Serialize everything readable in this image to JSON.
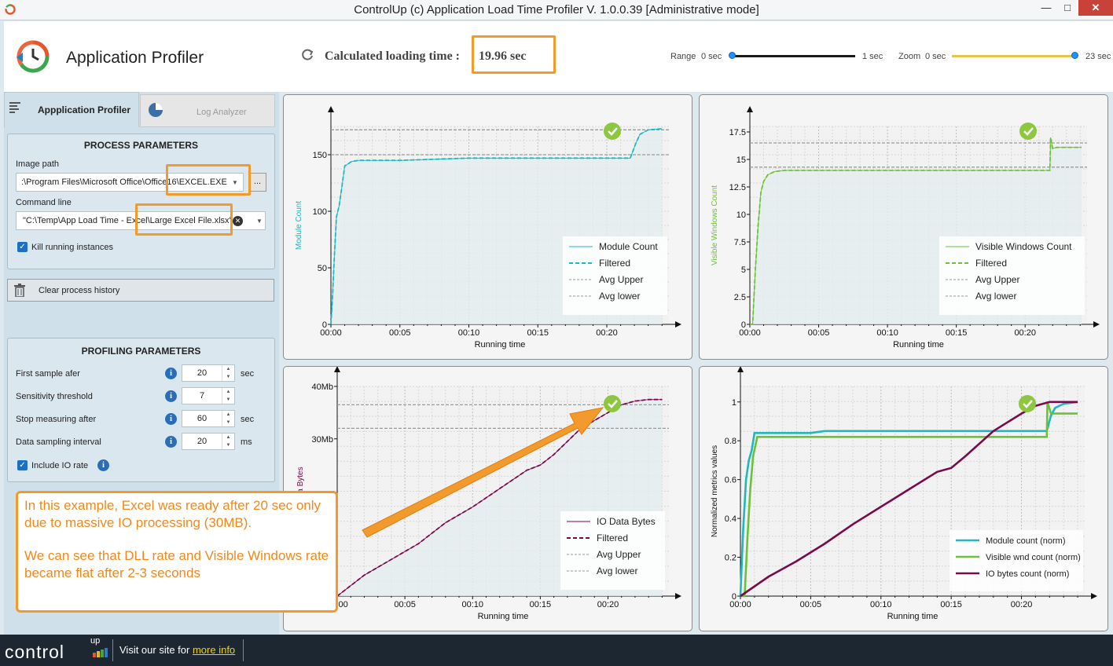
{
  "window": {
    "title": "ControlUp (c) Application Load Time Profiler  V. 1.0.0.39 [Administrative mode]",
    "min": "—",
    "max": "□",
    "close": "✕"
  },
  "header": {
    "app_title": "Application Profiler",
    "calc_label": "Calculated loading time :",
    "calc_value": "19.96 sec",
    "range": {
      "label": "Range",
      "min": "0 sec",
      "max": "1 sec",
      "value": 0
    },
    "zoom": {
      "label": "Zoom",
      "min": "0 sec",
      "max": "23 sec",
      "value": 1
    }
  },
  "tabs": [
    {
      "label": "Appplication Profiler",
      "icon": "list-icon"
    },
    {
      "label": "Log Analyzer",
      "icon": "pie-chart-icon"
    }
  ],
  "process": {
    "title": "PROCESS PARAMETERS",
    "image_path_label": "Image path",
    "image_path": "\\Program Files\\Microsoft Office\\Office16\\EXCEL.EXE",
    "image_path_shown": ":\\Program Files\\Microsoft Office\\Office16\\EXCEL.EXE",
    "browse": "...",
    "cmdline_label": "Command line",
    "cmdline": "\"C:\\Temp\\App Load Time - Excel\\Large Excel File.xlsx\"",
    "kill_label": "Kill running instances",
    "clear_label": "Clear process history"
  },
  "profiling": {
    "title": "PROFILING PARAMETERS",
    "rows": [
      {
        "label": "First sample afer",
        "value": "20",
        "unit": "sec"
      },
      {
        "label": "Sensitivity threshold",
        "value": "7",
        "unit": ""
      },
      {
        "label": "Stop measuring after",
        "value": "60",
        "unit": "sec"
      },
      {
        "label": "Data sampling interval",
        "value": "20",
        "unit": "ms"
      }
    ],
    "include_io": "Include IO rate"
  },
  "callout": {
    "p1": "In this example, Excel was ready after 20 sec only due to massive IO processing (30MB).",
    "p2": "We can see that DLL rate and Visible Windows rate became flat after 2-3 seconds"
  },
  "footer": {
    "brand": "control",
    "brand_up": "up",
    "visit": "Visit our site for ",
    "link": "more info"
  },
  "colors": {
    "teal": "#20b7c0",
    "green": "#6cc13b",
    "maroon": "#7a0a4c",
    "orange": "#f39a2c",
    "check": "#8dc63f"
  },
  "chart_data": [
    {
      "type": "line",
      "xlabel": "Running time",
      "ylabel": "Module Count",
      "xticks": [
        "00:00",
        "00:05",
        "00:10",
        "00:15",
        "00:20"
      ],
      "x_max_sec": 24.5,
      "ylim": [
        0,
        175
      ],
      "yticks": [
        0,
        50,
        100,
        150
      ],
      "avg_upper": 172,
      "avg_lower": 150,
      "series": [
        {
          "name": "Module Count",
          "color": "#20b7c0",
          "style": "solid",
          "x": [
            0,
            0.1,
            0.25,
            0.4,
            0.6,
            0.8,
            1.0,
            1.5,
            2,
            5,
            10,
            15,
            20,
            21.7,
            22.1,
            22.4,
            23,
            24
          ],
          "y": [
            0,
            20,
            60,
            95,
            105,
            122,
            140,
            144,
            145,
            145,
            147,
            147,
            147,
            147,
            160,
            168,
            172,
            173
          ]
        },
        {
          "name": "Filtered",
          "color": "#20b7c0",
          "style": "dashed",
          "x": [
            0,
            0.1,
            0.25,
            0.4,
            0.6,
            0.8,
            1.0,
            1.5,
            2,
            5,
            10,
            15,
            20,
            21.7,
            22.1,
            22.4,
            23,
            24
          ],
          "y": [
            0,
            20,
            60,
            95,
            105,
            122,
            140,
            144,
            145,
            145,
            147,
            147,
            147,
            147,
            160,
            168,
            172,
            173
          ]
        },
        {
          "name": "Avg Upper",
          "color": "#999999",
          "style": "dotted"
        },
        {
          "name": "Avg lower",
          "color": "#999999",
          "style": "dotted"
        }
      ]
    },
    {
      "type": "line",
      "xlabel": "Running time",
      "ylabel": "Visible Windows Count",
      "xticks": [
        "00:00",
        "00:05",
        "00:10",
        "00:15",
        "00:20"
      ],
      "x_max_sec": 24.5,
      "ylim": [
        0,
        18
      ],
      "yticks": [
        0,
        2.5,
        5,
        7.5,
        10,
        12.5,
        15,
        17.5
      ],
      "avg_upper": 16.5,
      "avg_lower": 14.3,
      "series": [
        {
          "name": "Visible Windows Count",
          "color": "#6cc13b",
          "style": "solid",
          "x": [
            0,
            0.2,
            0.4,
            0.6,
            0.8,
            1.0,
            1.3,
            1.8,
            2.5,
            5,
            10,
            15,
            20,
            21.8,
            21.85,
            22.0,
            22.3,
            24.1
          ],
          "y": [
            0,
            0,
            5,
            9,
            12,
            13,
            13.6,
            13.9,
            14,
            14,
            14,
            14,
            14,
            14,
            17,
            16,
            16.1,
            16.1
          ]
        },
        {
          "name": "Filtered",
          "color": "#6cc13b",
          "style": "dashed",
          "x": [
            0,
            0.2,
            0.4,
            0.6,
            0.8,
            1.0,
            1.3,
            1.8,
            2.5,
            5,
            10,
            15,
            20,
            21.8,
            21.85,
            22.0,
            22.3,
            24.1
          ],
          "y": [
            0,
            0,
            5,
            9,
            12,
            13,
            13.6,
            13.9,
            14,
            14,
            14,
            14,
            14,
            14,
            17,
            16,
            16.1,
            16.1
          ]
        },
        {
          "name": "Avg Upper",
          "color": "#999999",
          "style": "dotted"
        },
        {
          "name": "Avg lower",
          "color": "#999999",
          "style": "dotted"
        }
      ]
    },
    {
      "type": "line",
      "xlabel": "Running time",
      "ylabel": "IO Data Bytes",
      "xticks": [
        "00:00",
        "00:05",
        "00:10",
        "00:15",
        "00:20"
      ],
      "x_max_sec": 24.5,
      "ylim": [
        0,
        40
      ],
      "yticks": [
        30,
        40
      ],
      "ytick_labels": [
        "30Mb",
        "40Mb"
      ],
      "avg_upper": 36.5,
      "avg_lower": 32,
      "series": [
        {
          "name": "IO Data Bytes",
          "color": "#7a0a4c",
          "style": "solid",
          "x": [
            0,
            2,
            4,
            6,
            8,
            10,
            12,
            14,
            15,
            16,
            18,
            20,
            21,
            22,
            23,
            24
          ],
          "y": [
            0,
            4,
            7,
            10,
            14,
            17,
            20.5,
            24,
            25,
            27,
            32,
            35,
            36.5,
            37.2,
            37.5,
            37.5
          ]
        },
        {
          "name": "Filtered",
          "color": "#7a0a4c",
          "style": "dashed",
          "x": [
            0,
            2,
            4,
            6,
            8,
            10,
            12,
            14,
            15,
            16,
            18,
            20,
            21,
            22,
            23,
            24
          ],
          "y": [
            0,
            4,
            7,
            10,
            14,
            17,
            20.5,
            24,
            25,
            27,
            32,
            35,
            36.5,
            37.2,
            37.5,
            37.5
          ]
        },
        {
          "name": "Avg Upper",
          "color": "#999999",
          "style": "dotted"
        },
        {
          "name": "Avg lower",
          "color": "#999999",
          "style": "dotted"
        }
      ]
    },
    {
      "type": "line",
      "xlabel": "Running time",
      "ylabel": "Normalized metrics values",
      "xticks": [
        "00:00",
        "00:05",
        "00:10",
        "00:15",
        "00:20"
      ],
      "x_max_sec": 24.5,
      "ylim": [
        0,
        1.08
      ],
      "yticks": [
        0,
        0.2,
        0.4,
        0.6,
        0.8,
        1
      ],
      "series": [
        {
          "name": "Module count (norm)",
          "color": "#20b7c0",
          "style": "solid",
          "x": [
            0,
            0.2,
            0.4,
            0.6,
            0.8,
            1.0,
            1.5,
            5,
            6,
            10,
            15,
            20,
            21.8,
            22.1,
            22.4,
            23,
            24
          ],
          "y": [
            0,
            0.35,
            0.6,
            0.7,
            0.75,
            0.84,
            0.84,
            0.84,
            0.85,
            0.85,
            0.85,
            0.85,
            0.85,
            0.93,
            0.97,
            0.99,
            1
          ]
        },
        {
          "name": "Visible wnd count (norm)",
          "color": "#6cc13b",
          "style": "solid",
          "x": [
            0,
            0.3,
            0.5,
            0.7,
            0.9,
            1.2,
            2,
            10,
            20,
            21.8,
            21.85,
            22.1,
            23,
            24
          ],
          "y": [
            0,
            0,
            0.3,
            0.55,
            0.72,
            0.82,
            0.82,
            0.82,
            0.82,
            0.82,
            1,
            0.94,
            0.94,
            0.94
          ]
        },
        {
          "name": "IO bytes count (norm)",
          "color": "#7a0a4c",
          "style": "solid",
          "x": [
            0,
            2,
            4,
            6,
            8,
            10,
            12,
            14,
            15,
            16,
            18,
            20,
            21,
            22,
            23,
            24
          ],
          "y": [
            0,
            0.1,
            0.18,
            0.27,
            0.37,
            0.46,
            0.55,
            0.64,
            0.66,
            0.72,
            0.85,
            0.94,
            0.98,
            1,
            1,
            1
          ]
        }
      ]
    }
  ]
}
